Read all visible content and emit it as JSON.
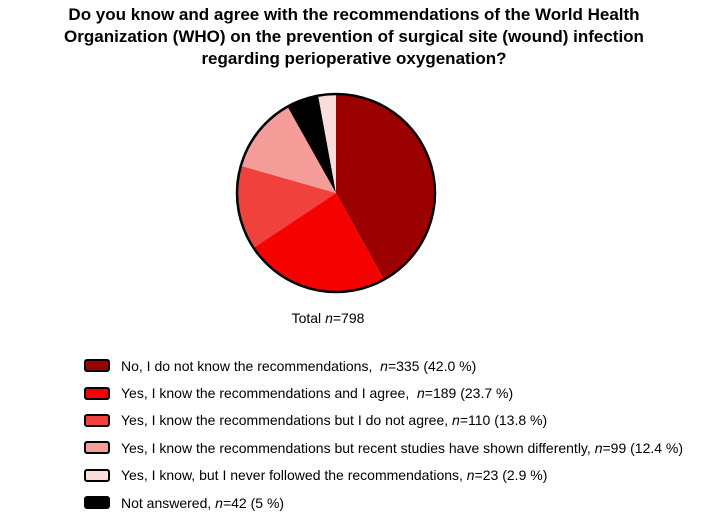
{
  "title": {
    "lines": [
      "Do you know and agree with the recommendations of the World Health",
      "Organization (WHO) on the prevention of surgical site (wound) infection",
      "regarding perioperative oxygenation?"
    ]
  },
  "total_label": {
    "before": "Total ",
    "n": "n",
    "after": "=798"
  },
  "legend": {
    "items": [
      {
        "before": "No, I do not know the recommendations,  ",
        "n": "n",
        "after": "=335 (42.0 %)",
        "color": "#9B0100"
      },
      {
        "before": "Yes, I know the recommendations and I agree,  ",
        "n": "n",
        "after": "=189 (23.7 %)",
        "color": "#F40100"
      },
      {
        "before": "Yes, I know the recommendations but I do not agree, ",
        "n": "n",
        "after": "=110 (13.8 %)",
        "color": "#F0413D"
      },
      {
        "before": "Yes, I know the recommendations but recent studies have shown differently, ",
        "n": "n",
        "after": "=99 (12.4 %)",
        "color": "#F59D99"
      },
      {
        "before": "Yes, I know, but I never followed the recommendations, ",
        "n": "n",
        "after": "=23 (2.9 %)",
        "color": "#FADCDA"
      },
      {
        "before": "Not answered, ",
        "n": "n",
        "after": "=42 (5 %)",
        "color": "#000000"
      }
    ]
  },
  "chart_data": {
    "type": "pie",
    "title": "Do you know and agree with the recommendations of the World Health Organization (WHO) on the prevention of surgical site (wound) infection regarding perioperative oxygenation?",
    "total_n": 798,
    "total_label": "Total n=798",
    "slices": [
      {
        "label": "No, I do not know the recommendations",
        "n": 335,
        "pct": 42.0,
        "color": "#9B0100"
      },
      {
        "label": "Yes, I know the recommendations and I agree",
        "n": 189,
        "pct": 23.7,
        "color": "#F40100"
      },
      {
        "label": "Yes, I know the recommendations but I do not agree",
        "n": 110,
        "pct": 13.8,
        "color": "#F0413D"
      },
      {
        "label": "Yes, I know the recommendations but recent studies have shown differently",
        "n": 99,
        "pct": 12.4,
        "color": "#F59D99"
      },
      {
        "label": "Yes, I know, but I never followed the recommendations",
        "n": 23,
        "pct": 2.9,
        "color": "#FADCDA"
      },
      {
        "label": "Not answered",
        "n": 42,
        "pct": 5,
        "color": "#000000"
      }
    ],
    "pie_draw_order": [
      0,
      1,
      2,
      3,
      5,
      4
    ],
    "start_angle_deg": 0,
    "direction": "clockwise",
    "outline_color": "#000000",
    "legend_position": "bottom-left",
    "grid": false
  }
}
